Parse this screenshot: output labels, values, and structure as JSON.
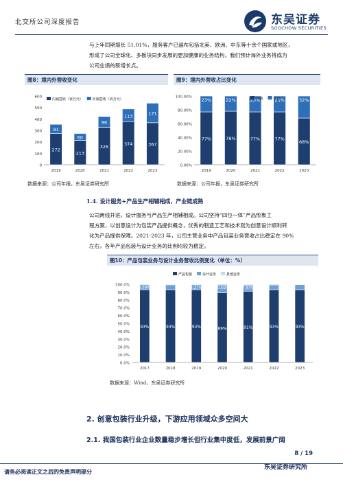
{
  "header": {
    "left_text": "北交所公司深度报告",
    "brand_cn": "东吴证券",
    "brand_en": "SOOCHOW SECURITIES"
  },
  "intro_paragraph": [
    "与上年同期增长 51.01%，服务客户已遍布包括北美、欧洲、中东等十余个国家或地区，",
    "形成了公司全球化、多板块同步发展的更加健康的业务结构，我们预计海外业务将成为",
    "公司业绩的新增长点。"
  ],
  "figure8": {
    "caption": "图8：境内外营收变化",
    "source": "数据来源：公司年报，东吴证券研究所",
    "colors": {
      "domestic": "#1f3e70",
      "overseas": "#2e6fb8"
    },
    "chart_data": {
      "type": "bar",
      "stacked": true,
      "categories": [
        "2019",
        "2020",
        "2021",
        "2022",
        "2023"
      ],
      "series": [
        {
          "name": "内销营收（百万元）",
          "values": [
            272,
            213,
            326,
            374,
            367
          ]
        },
        {
          "name": "外销营收（百万元）",
          "values": [
            81,
            60,
            96,
            113,
            171
          ]
        }
      ],
      "ylim": [
        0,
        600
      ],
      "yticks": [
        "0",
        "100",
        "200",
        "300",
        "400",
        "500",
        "600"
      ],
      "legend": "top-left",
      "grid": false
    }
  },
  "figure9": {
    "caption": "图9：境内外营收占比变化",
    "source": "数据来源：公司年报，东吴证券研究所",
    "colors": {
      "domestic": "#1f3e70",
      "overseas": "#2e6fb8"
    },
    "chart_data": {
      "type": "bar",
      "stacked": true,
      "percent": true,
      "categories": [
        "2019",
        "2020",
        "2021",
        "2022",
        "2023"
      ],
      "series": [
        {
          "name": "内销",
          "values": [
            77,
            78,
            77,
            77,
            68
          ],
          "labels": [
            "77%",
            "78%",
            "77%",
            "77%",
            "68%"
          ]
        },
        {
          "name": "外销",
          "values": [
            23,
            22,
            23,
            23,
            32
          ],
          "labels": [
            "23%",
            "22%",
            "23%",
            "23%",
            "32%"
          ]
        }
      ],
      "ylim": [
        0,
        100
      ],
      "yticks": [
        "0.00%",
        "20.00%",
        "40.00%",
        "60.00%",
        "80.00%",
        "100.00%"
      ],
      "legend": "top-right",
      "grid": false
    }
  },
  "section_1_4": {
    "heading": "1.4.  设计服务+产品生产相辅相成，产业链成熟",
    "paragraph": [
      "公司两线并进，设计服务与产品生产相辅相成。公司坚持“四位一体”产品形象工",
      "程方案，以创意设计为包装产品提供概念，优秀的制造工艺和技术则为创意设计顺利转",
      "化为产品提供保障。2021-2023 年，公司主营业务中产品包装业务营收占比稳定在 90%",
      "左右，各年产品包装与设计业务的比例均较为稳定。"
    ]
  },
  "figure10": {
    "caption": "图10：产品包装业务与设计业务营收比例变化（单位：%）",
    "source": "数据来源：Wind，东吴证券研究所",
    "colors": {
      "product": "#1f3e70",
      "design": "#6ea0d6",
      "other": "#c8d6ea"
    },
    "chart_data": {
      "type": "bar",
      "stacked": true,
      "percent": true,
      "categories": [
        "2017",
        "2018",
        "2019",
        "2020",
        "2021",
        "2022",
        "2023"
      ],
      "series": [
        {
          "name": "产品包装",
          "values": [
            93,
            93,
            93,
            89,
            91,
            93,
            93
          ],
          "labels": [
            "93%",
            "93%",
            "93%",
            "89%",
            "91%",
            "93%",
            "93%"
          ]
        },
        {
          "name": "设计业务",
          "values": [
            6.59,
            6.2,
            6.27,
            10.02,
            7.83,
            6.0,
            6.5
          ],
          "labels": [
            "6.59%",
            "",
            "6.27%",
            "10.02%",
            "7.83%",
            "",
            ""
          ]
        },
        {
          "name": "其他业务",
          "values": [
            0.0,
            0.8,
            1.03,
            1.34,
            1.0,
            1.18,
            0.64
          ],
          "labels": [
            "0.0%",
            "",
            "1.03%",
            "1.34%",
            "1.00%",
            "1.18%",
            "0.64%"
          ]
        }
      ],
      "ylim": [
        0,
        100
      ],
      "yticks": [
        "0.0%",
        "10.0%",
        "20.0%",
        "30.0%",
        "40.0%",
        "50.0%",
        "60.0%",
        "70.0%",
        "80.0%",
        "90.0%",
        "100.0%"
      ],
      "legend": "top-center",
      "grid": false
    }
  },
  "section_2": {
    "heading": "2.  创意包装行业升级，下游应用领域众多空间大",
    "sub_heading": "2.1.  我国包装行业企业数量稳步增长但行业集中度低，发展前景广阔"
  },
  "footer": {
    "page": "8 / 19",
    "disclaimer": "请务必阅读正文之后的免责声明部分",
    "brand": "东吴证券研究所"
  }
}
